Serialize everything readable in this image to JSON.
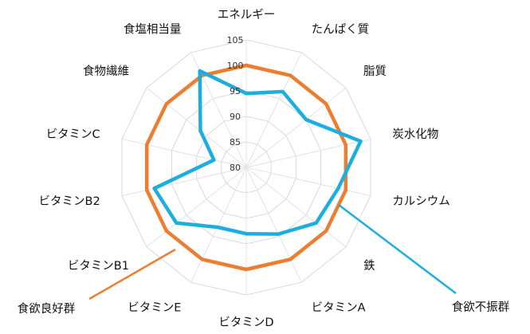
{
  "chart_data": {
    "type": "radar",
    "axes": [
      "エネルギー",
      "たんぱく質",
      "脂質",
      "炭水化物",
      "カルシウム",
      "鉄",
      "ビタミンA",
      "ビタミンD",
      "ビタミンE",
      "ビタミンB1",
      "ビタミンB2",
      "ビタミンC",
      "食物繊維",
      "食塩相当量"
    ],
    "ticks": [
      "80",
      "85",
      "90",
      "95",
      "100",
      "105"
    ],
    "rlim": [
      80,
      105
    ],
    "grid": true,
    "series": [
      {
        "name": "食欲良好群",
        "color": "#ED7D31",
        "values": [
          100,
          100,
          100,
          100,
          100,
          100,
          100,
          100,
          100,
          100,
          100,
          100,
          100,
          100
        ]
      },
      {
        "name": "食欲不振群",
        "color": "#1DAEE0",
        "values": [
          94.5,
          96.5,
          95,
          103,
          98.5,
          97.5,
          94.5,
          93,
          93,
          97.5,
          98.5,
          86.5,
          91.5,
          101
        ]
      }
    ]
  }
}
